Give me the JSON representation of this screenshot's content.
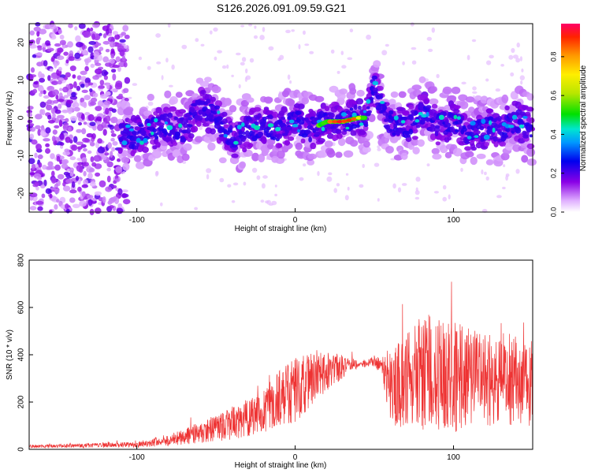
{
  "title": "S126.2026.091.09.59.G21",
  "chart_data": [
    {
      "type": "heatmap",
      "xlabel": "Height of straight line (km)",
      "ylabel": "Frequency (Hz)",
      "xlim": [
        -168,
        150
      ],
      "ylim": [
        -25,
        25
      ],
      "xticks": [
        -100,
        0,
        100
      ],
      "yticks": [
        -20,
        -10,
        0,
        10,
        20
      ],
      "ridge": {
        "x": [
          -110,
          -100,
          -90,
          -80,
          -70,
          -60,
          -50,
          -40,
          -30,
          -20,
          -10,
          0,
          10,
          20,
          30,
          40,
          45,
          50,
          55,
          60,
          70,
          80,
          90,
          100,
          110,
          120,
          130,
          140,
          150
        ],
        "freq": [
          -4,
          -5,
          -3,
          -2,
          -3,
          3,
          0,
          -6,
          -3,
          -2,
          -3,
          -1,
          -3,
          -1,
          -1,
          0,
          0,
          8,
          2,
          -1,
          -3,
          2,
          -2,
          -1,
          -4,
          -3,
          -3,
          -1,
          -3
        ]
      },
      "noise_region": [
        -168,
        -110
      ],
      "colorbar": {
        "label": "Normalized spectral amplitude",
        "range": [
          0,
          0.97
        ],
        "ticks": [
          0.0,
          0.2,
          0.4,
          0.6,
          0.8
        ],
        "tick_labels": [
          "0.0",
          "0.2",
          "0.4",
          "0.6",
          "0.8"
        ]
      }
    },
    {
      "type": "line",
      "xlabel": "Height of straight line (km)",
      "ylabel": "SNR (10 * v/v)",
      "xlim": [
        -168,
        150
      ],
      "ylim": [
        0,
        800
      ],
      "xticks": [
        -100,
        0,
        100
      ],
      "yticks": [
        0,
        200,
        400,
        600,
        800
      ],
      "color": "#ee3333",
      "envelope": {
        "x": [
          -168,
          -100,
          -80,
          -60,
          -40,
          -20,
          -10,
          0,
          10,
          20,
          30,
          40,
          50,
          55,
          60,
          70,
          80,
          90,
          100,
          110,
          120,
          130,
          140,
          150
        ],
        "mean": [
          12,
          20,
          40,
          70,
          110,
          160,
          220,
          250,
          300,
          330,
          350,
          360,
          370,
          350,
          250,
          300,
          320,
          330,
          310,
          300,
          290,
          300,
          290,
          280
        ],
        "spread": [
          6,
          12,
          25,
          45,
          70,
          90,
          120,
          140,
          120,
          90,
          50,
          15,
          20,
          40,
          160,
          220,
          240,
          250,
          240,
          220,
          200,
          200,
          190,
          180
        ]
      }
    }
  ]
}
